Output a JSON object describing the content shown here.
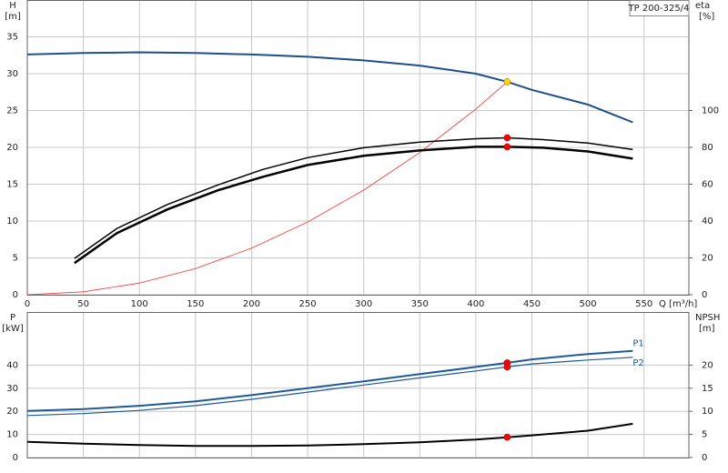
{
  "chart_data": [
    {
      "type": "line",
      "title": "TP 200-325/4",
      "ylabel": "H",
      "yunit": "[m]",
      "y2label": "eta",
      "y2unit": "[%]",
      "xlabel": "Q [m³/h]",
      "xlim": [
        0,
        590
      ],
      "xticks": [
        0,
        50,
        100,
        150,
        200,
        250,
        300,
        350,
        400,
        450,
        500,
        550
      ],
      "show_xtick_labels": true,
      "ylim": [
        0,
        40
      ],
      "yticks": [
        0,
        5,
        10,
        15,
        20,
        25,
        30,
        35
      ],
      "y2lim": [
        0,
        160
      ],
      "y2ticks": [
        0,
        20,
        40,
        60,
        80,
        100
      ],
      "grid": true,
      "series": [
        {
          "color": "#1f4e8c",
          "width": 2,
          "x": [
            0,
            50,
            100,
            150,
            200,
            250,
            300,
            350,
            400,
            428,
            450,
            500,
            540
          ],
          "values": [
            32.6,
            32.8,
            32.9,
            32.8,
            32.6,
            32.3,
            31.8,
            31.1,
            30.0,
            28.9,
            27.8,
            25.8,
            23.4
          ]
        },
        {
          "color": "#ff3030",
          "width": 0.8,
          "x": [
            0,
            50,
            100,
            150,
            200,
            250,
            300,
            350,
            400,
            428
          ],
          "values": [
            0,
            0.39,
            1.58,
            3.55,
            6.31,
            9.86,
            14.2,
            19.3,
            25.2,
            28.9
          ]
        },
        {
          "color": "#000000",
          "width": 1.5,
          "axis": "y2",
          "x": [
            42,
            80,
            125,
            170,
            210,
            250,
            300,
            350,
            400,
            428,
            460,
            500,
            540
          ],
          "values": [
            19.7,
            36,
            49,
            59.6,
            68,
            74.4,
            79.8,
            82.8,
            84.7,
            85.2,
            84.2,
            82.3,
            78.8
          ]
        },
        {
          "color": "#000000",
          "width": 2.5,
          "axis": "y2",
          "x": [
            42,
            80,
            125,
            170,
            210,
            250,
            300,
            350,
            400,
            428,
            460,
            500,
            540
          ],
          "values": [
            17.2,
            33.5,
            46.3,
            56.7,
            64,
            70.4,
            75.4,
            78.3,
            80.3,
            80.3,
            79.8,
            77.8,
            73.9
          ]
        }
      ],
      "points": [
        {
          "x": 428,
          "y": 28.9,
          "color": "#ffd700",
          "axis": "y"
        },
        {
          "x": 428,
          "y": 85.2,
          "color": "#ff0000",
          "axis": "y2"
        },
        {
          "x": 428,
          "y": 80.3,
          "color": "#ff0000",
          "axis": "y2"
        }
      ]
    },
    {
      "type": "line",
      "ylabel": "P",
      "yunit": "[kW]",
      "y2label": "NPSH",
      "y2unit": "[m]",
      "xlim": [
        0,
        590
      ],
      "xticks": [
        0,
        50,
        100,
        150,
        200,
        250,
        300,
        350,
        400,
        450,
        500,
        550
      ],
      "show_xtick_labels": false,
      "ylim": [
        0,
        63
      ],
      "yticks": [
        0,
        10,
        20,
        30,
        40
      ],
      "y2lim": [
        0,
        31.5
      ],
      "y2ticks": [
        0,
        5,
        10,
        15,
        20
      ],
      "grid": true,
      "series": [
        {
          "name": "P1",
          "color": "#1f5a96",
          "width": 2,
          "x": [
            0,
            50,
            100,
            150,
            200,
            250,
            300,
            350,
            400,
            428,
            450,
            500,
            540
          ],
          "values": [
            20.2,
            21.0,
            22.4,
            24.3,
            27.0,
            30.0,
            33.0,
            36.1,
            39.2,
            41.0,
            42.5,
            44.8,
            46.2
          ]
        },
        {
          "name": "P2",
          "color": "#1f5a96",
          "width": 1.2,
          "x": [
            0,
            50,
            100,
            150,
            200,
            250,
            300,
            350,
            400,
            428,
            450,
            500,
            540
          ],
          "values": [
            18.2,
            19.0,
            20.4,
            22.5,
            25.2,
            28.3,
            31.4,
            34.5,
            37.5,
            39.2,
            40.5,
            42.2,
            43.4
          ]
        },
        {
          "color": "#000000",
          "width": 2,
          "axis": "y2",
          "x": [
            0,
            50,
            100,
            150,
            200,
            250,
            300,
            350,
            400,
            428,
            450,
            500,
            540
          ],
          "values": [
            3.4,
            3.0,
            2.7,
            2.5,
            2.5,
            2.6,
            2.9,
            3.3,
            3.9,
            4.4,
            4.8,
            5.8,
            7.3
          ]
        }
      ],
      "points": [
        {
          "x": 428,
          "y": 41.0,
          "color": "#ff0000",
          "axis": "y"
        },
        {
          "x": 428,
          "y": 39.2,
          "color": "#ff0000",
          "axis": "y"
        },
        {
          "x": 428,
          "y": 4.4,
          "color": "#ff0000",
          "axis": "y2"
        }
      ]
    }
  ]
}
